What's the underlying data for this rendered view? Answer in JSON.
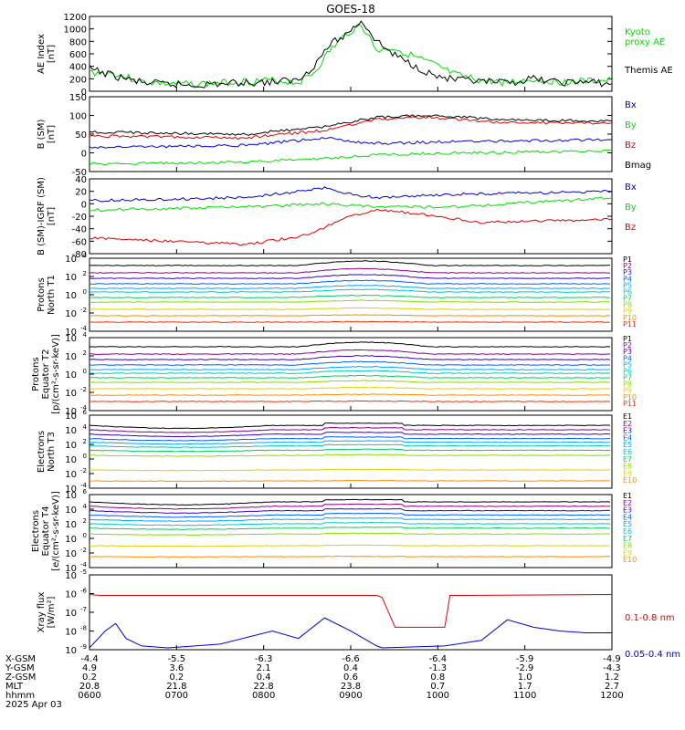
{
  "title": "GOES-18",
  "colors": {
    "black": "#000000",
    "green": "#00dd00",
    "red": "#dd0000",
    "blue": "#0000dd",
    "p_palette": [
      "#000000",
      "#8b008b",
      "#3a00c8",
      "#0060ff",
      "#00a8ff",
      "#00c8c8",
      "#00d060",
      "#88dd00",
      "#e0d000",
      "#ff8c00",
      "#ff2a00",
      "#b00000"
    ]
  },
  "chart_data": [
    {
      "id": "ae",
      "type": "line",
      "ylabel": "AE Index\n[nT]",
      "yticks": [
        "1200",
        "1000",
        "800",
        "600",
        "400",
        "200",
        "0"
      ],
      "ylim": [
        0,
        1200
      ],
      "series": [
        {
          "name": "Kyoto\nproxy AE",
          "color": "#00dd00",
          "x": [
            0,
            0.05,
            0.1,
            0.15,
            0.2,
            0.25,
            0.3,
            0.35,
            0.4,
            0.43,
            0.46,
            0.49,
            0.52,
            0.55,
            0.58,
            0.62,
            0.66,
            0.7,
            0.75,
            0.8,
            0.85,
            0.9,
            0.95,
            1
          ],
          "y": [
            300,
            280,
            150,
            120,
            110,
            130,
            160,
            170,
            140,
            300,
            650,
            900,
            1080,
            650,
            700,
            560,
            420,
            260,
            170,
            140,
            190,
            150,
            160,
            170
          ]
        },
        {
          "name": "Themis AE",
          "color": "#000000",
          "x": [
            0,
            0.05,
            0.1,
            0.15,
            0.2,
            0.25,
            0.3,
            0.35,
            0.4,
            0.43,
            0.46,
            0.49,
            0.52,
            0.55,
            0.58,
            0.62,
            0.66,
            0.7,
            0.75,
            0.8,
            0.85,
            0.9,
            0.95,
            1
          ],
          "y": [
            360,
            240,
            140,
            110,
            100,
            120,
            140,
            150,
            180,
            420,
            750,
            900,
            1140,
            800,
            600,
            420,
            250,
            180,
            150,
            130,
            200,
            140,
            150,
            120
          ]
        }
      ]
    },
    {
      "id": "bsm",
      "type": "line",
      "ylabel": "B (SM)\n[nT]",
      "yticks": [
        "150",
        "100",
        "50",
        "0",
        "-50"
      ],
      "ylim": [
        -50,
        150
      ],
      "series": [
        {
          "name": "Bx",
          "color": "#0000dd",
          "x": [
            0,
            0.3,
            0.45,
            0.5,
            0.55,
            0.7,
            1
          ],
          "y": [
            15,
            20,
            40,
            30,
            25,
            30,
            35
          ]
        },
        {
          "name": "By",
          "color": "#00dd00",
          "x": [
            0,
            0.3,
            0.45,
            0.55,
            0.7,
            1
          ],
          "y": [
            -30,
            -25,
            -15,
            -5,
            0,
            5
          ]
        },
        {
          "name": "Bz",
          "color": "#dd0000",
          "x": [
            0,
            0.3,
            0.45,
            0.55,
            0.65,
            0.8,
            1
          ],
          "y": [
            45,
            40,
            60,
            90,
            95,
            80,
            80
          ]
        },
        {
          "name": "Bmag",
          "color": "#000000",
          "x": [
            0,
            0.3,
            0.45,
            0.55,
            0.65,
            0.8,
            1
          ],
          "y": [
            55,
            50,
            70,
            95,
            100,
            88,
            85
          ]
        }
      ]
    },
    {
      "id": "bmigrf",
      "type": "line",
      "ylabel": "B (SM)-IGRF (SM)\n[nT]",
      "yticks": [
        "40",
        "20",
        "0",
        "-20",
        "-40",
        "-60",
        "-80"
      ],
      "ylim": [
        -80,
        40
      ],
      "series": [
        {
          "name": "Bx",
          "color": "#0000dd",
          "x": [
            0,
            0.3,
            0.45,
            0.5,
            0.55,
            0.7,
            1
          ],
          "y": [
            5,
            10,
            25,
            15,
            10,
            15,
            20
          ]
        },
        {
          "name": "By",
          "color": "#00dd00",
          "x": [
            0,
            0.3,
            0.45,
            0.55,
            0.7,
            1
          ],
          "y": [
            -10,
            -5,
            0,
            -5,
            -5,
            10
          ]
        },
        {
          "name": "Bz",
          "color": "#dd0000",
          "x": [
            0,
            0.15,
            0.3,
            0.42,
            0.48,
            0.55,
            0.62,
            0.75,
            1
          ],
          "y": [
            -55,
            -60,
            -65,
            -50,
            -25,
            -10,
            -15,
            -30,
            -25
          ]
        }
      ]
    },
    {
      "id": "pn",
      "type": "line",
      "ylabel": "Protons\nNorth T1",
      "scale": "log",
      "ylim": [
        -4,
        4
      ],
      "ytick_labels": [
        "10^4",
        "10^2",
        "10^0",
        "10^-2",
        "10^-4"
      ],
      "legend": [
        "P1",
        "P2",
        "P3",
        "P4",
        "P5",
        "P6",
        "P7",
        "P8",
        "P9",
        "P10",
        "P11"
      ],
      "base_levels": [
        3.2,
        2.4,
        1.8,
        1.2,
        0.7,
        0.3,
        -0.3,
        -0.8,
        -1.6,
        -2.3,
        -3.0
      ]
    },
    {
      "id": "pe",
      "type": "line",
      "ylabel": "Protons\nEquator T2\n[p/(cm²-s-sr-keV)]",
      "scale": "log",
      "ylim": [
        -4,
        4
      ],
      "ytick_labels": [
        "10^4",
        "10^2",
        "10^0",
        "10^-2",
        "10^-4"
      ],
      "legend": [
        "P1",
        "P2",
        "P3",
        "P4",
        "P5",
        "P6",
        "P7",
        "P8",
        "P9",
        "P10",
        "P11"
      ],
      "base_levels": [
        3.0,
        2.2,
        1.6,
        1.0,
        0.5,
        0.1,
        -0.4,
        -0.9,
        -1.6,
        -2.3,
        -3.0
      ]
    },
    {
      "id": "en",
      "type": "line",
      "ylabel": "Electrons\nNorth T3",
      "scale": "log",
      "ylim": [
        -4,
        6
      ],
      "ytick_labels": [
        "10^6",
        "10^4",
        "10^2",
        "10^0",
        "10^-2",
        "10^-4"
      ],
      "legend": [
        "E1",
        "E2",
        "E3",
        "E4",
        "E5",
        "E6",
        "E7",
        "E8",
        "E9",
        "E10"
      ],
      "base_levels": [
        4.6,
        4.0,
        3.4,
        2.8,
        2.3,
        1.8,
        1.2,
        0.5,
        -1.5,
        -3.0
      ]
    },
    {
      "id": "ee",
      "type": "line",
      "ylabel": "Electrons\nEquator T4\n[e/(cm²-s-sr-keV)]",
      "scale": "log",
      "ylim": [
        -4,
        6
      ],
      "ytick_labels": [
        "10^6",
        "10^4",
        "10^2",
        "10^0",
        "10^-2",
        "10^-4"
      ],
      "legend": [
        "E1",
        "E2",
        "E3",
        "E4",
        "E5",
        "E6",
        "E7",
        "E8",
        "E9",
        "E10"
      ],
      "base_levels": [
        5.0,
        4.4,
        3.8,
        3.2,
        2.6,
        2.0,
        1.4,
        0.6,
        -1.0,
        -2.5
      ]
    },
    {
      "id": "xray",
      "type": "line",
      "ylabel": "Xray flux\n[W/m²]",
      "scale": "log",
      "ylim": [
        -9,
        -5
      ],
      "ytick_labels": [
        "10^-5",
        "10^-6",
        "10^-7",
        "10^-8",
        "10^-9"
      ],
      "series": [
        {
          "name": "0.1-0.8 nm",
          "color": "#dd0000",
          "x": [
            0,
            0.02,
            0.55,
            0.56,
            0.585,
            0.68,
            0.69,
            1
          ],
          "y": [
            -6.05,
            -6.1,
            -6.1,
            -6.2,
            -7.8,
            -7.8,
            -6.1,
            -6.05
          ]
        },
        {
          "name": "0.05-0.4 nm",
          "color": "#0000dd",
          "x": [
            0,
            0.03,
            0.05,
            0.07,
            0.1,
            0.15,
            0.25,
            0.35,
            0.4,
            0.45,
            0.5,
            0.55,
            0.56,
            0.68,
            0.75,
            0.8,
            0.85,
            0.9,
            0.95,
            1
          ],
          "y": [
            -8.9,
            -8.0,
            -7.6,
            -8.4,
            -8.8,
            -8.9,
            -8.7,
            -8.0,
            -8.4,
            -7.3,
            -8.0,
            -8.8,
            -8.9,
            -8.8,
            -8.5,
            -7.4,
            -7.8,
            -8.0,
            -8.1,
            -8.1
          ]
        }
      ]
    }
  ],
  "x_axis": {
    "rows": [
      "X-GSM",
      "Y-GSM",
      "Z-GSM",
      "MLT",
      "hhmm",
      "2025 Apr 03"
    ],
    "columns": [
      [
        "-4.4",
        "4.9",
        "0.2",
        "20.8",
        "0600"
      ],
      [
        "-5.5",
        "3.6",
        "0.2",
        "21.8",
        "0700"
      ],
      [
        "-6.3",
        "2.1",
        "0.4",
        "22.8",
        "0800"
      ],
      [
        "-6.6",
        "0.4",
        "0.6",
        "23.8",
        "0900"
      ],
      [
        "-6.4",
        "-1.3",
        "0.8",
        "0.7",
        "1000"
      ],
      [
        "-5.9",
        "-2.9",
        "1.0",
        "1.7",
        "1100"
      ],
      [
        "-4.9",
        "-4.3",
        "1.2",
        "2.7",
        "1200"
      ]
    ]
  }
}
